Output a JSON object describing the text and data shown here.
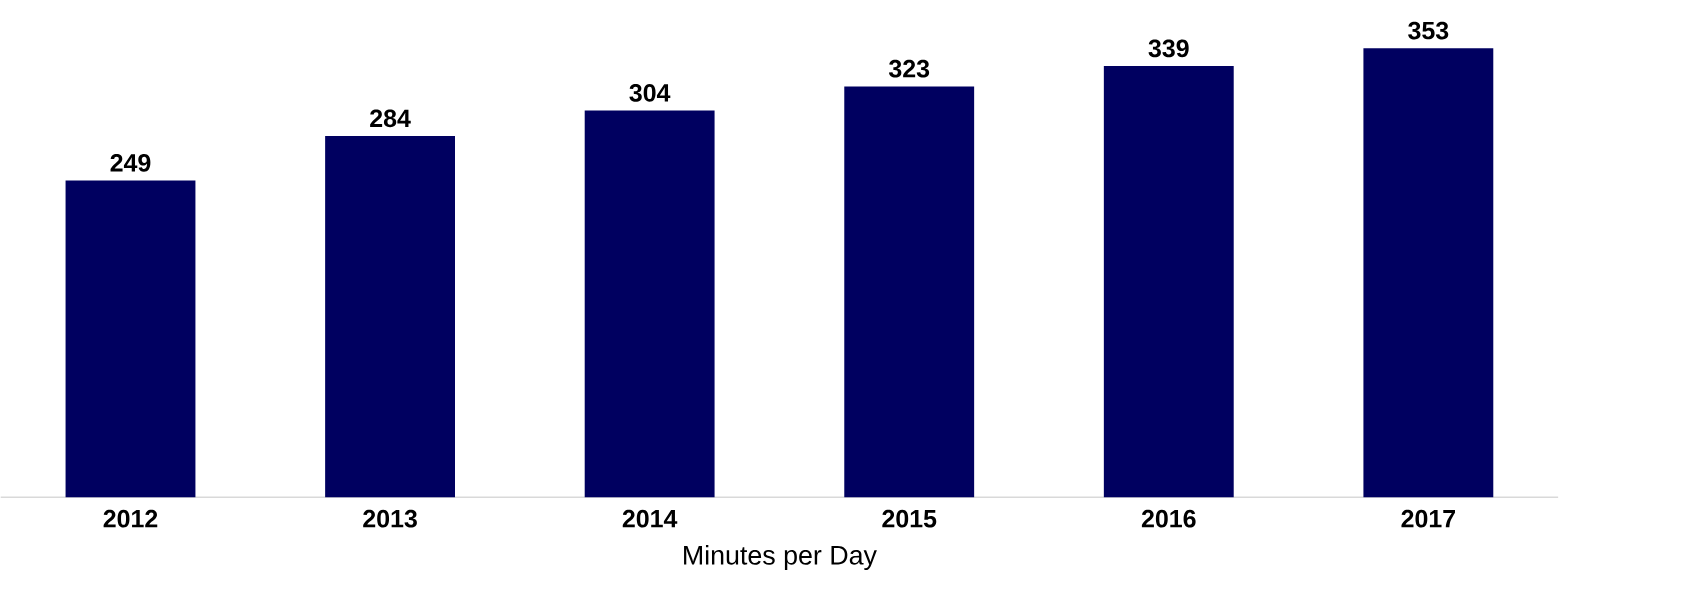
{
  "chart_data": {
    "type": "bar",
    "xlabel": "Minutes per Day",
    "categories": [
      "2012",
      "2013",
      "2014",
      "2015",
      "2016",
      "2017"
    ],
    "values": [
      249,
      284,
      304,
      323,
      339,
      353
    ],
    "color": "#000060",
    "data_labels": true
  }
}
